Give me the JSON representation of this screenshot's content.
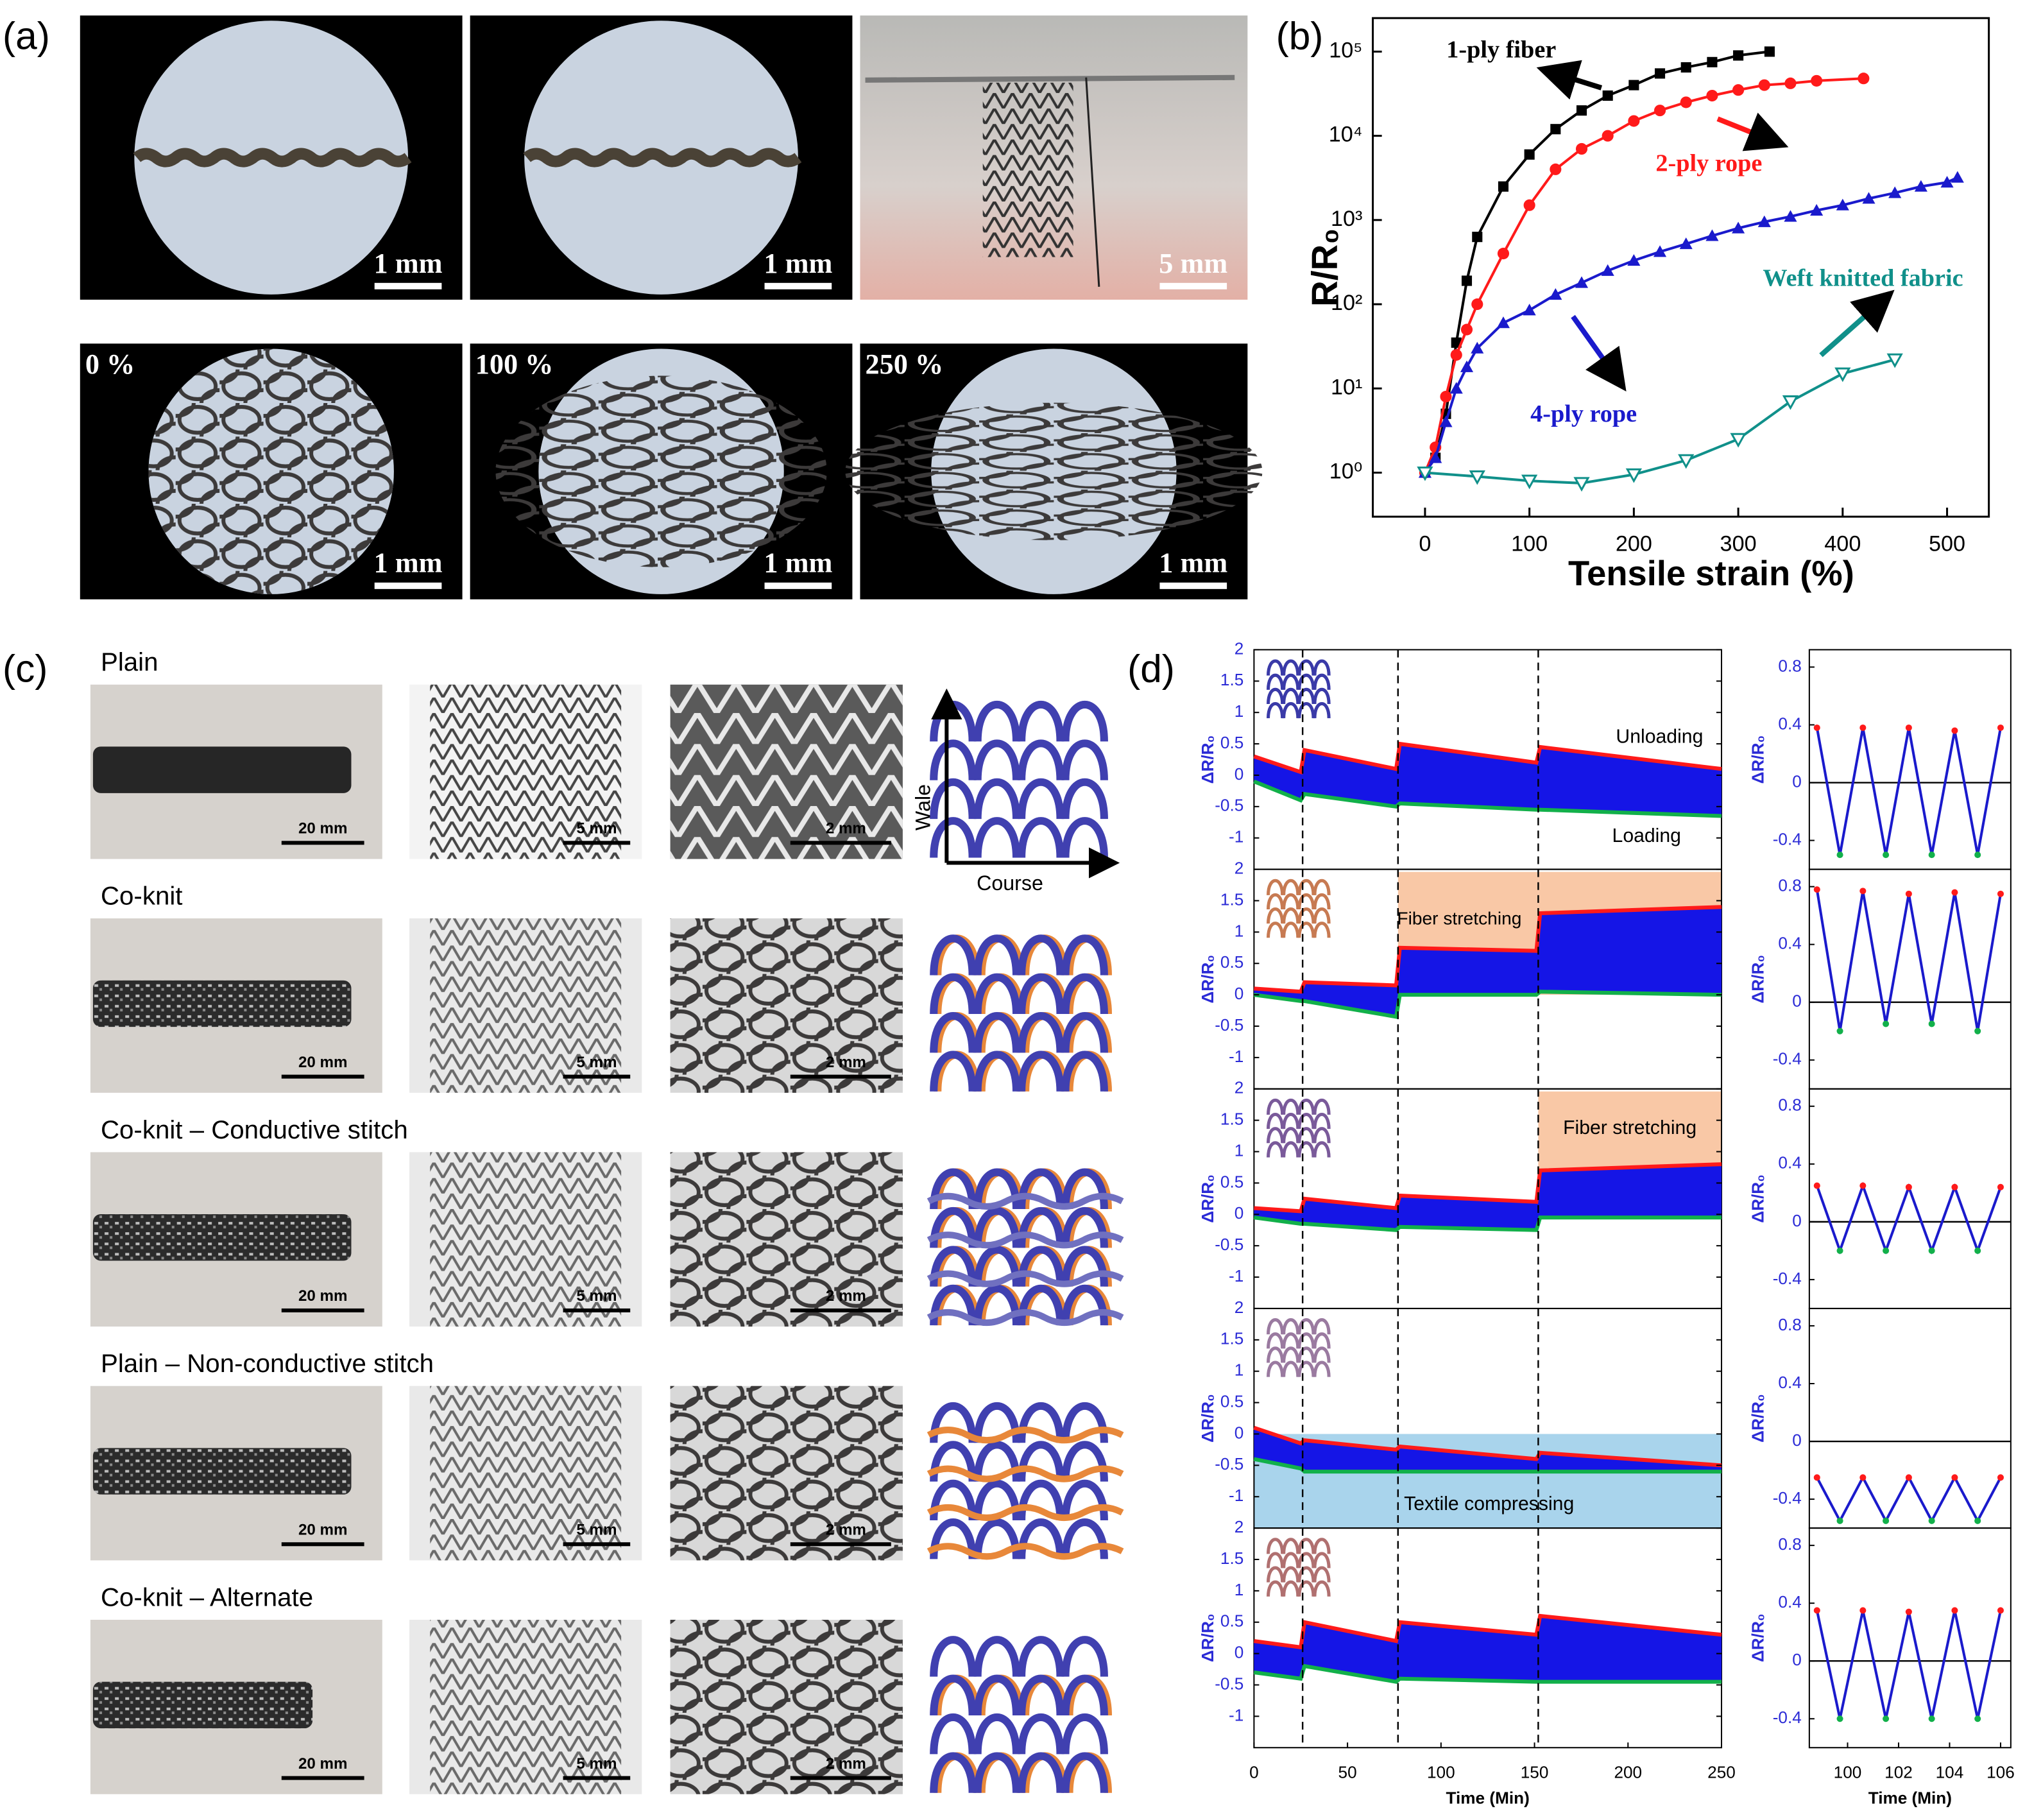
{
  "panel_labels": [
    "(a)",
    "(b)",
    "(c)",
    "(d)"
  ],
  "panel_a": {
    "scale_bars": [
      "1 mm",
      "1 mm",
      "5 mm",
      "1 mm",
      "1 mm",
      "1 mm"
    ],
    "strains": [
      "0 %",
      "100 %",
      "250 %"
    ]
  },
  "panel_c": {
    "rows": [
      {
        "title": "Plain",
        "scale_bars": [
          "20 mm",
          "5 mm",
          "2 mm"
        ]
      },
      {
        "title": "Co-knit",
        "scale_bars": [
          "20 mm",
          "5 mm",
          "2 mm"
        ]
      },
      {
        "title": "Co-knit – Conductive stitch",
        "scale_bars": [
          "20 mm",
          "5 mm",
          "2 mm"
        ]
      },
      {
        "title": "Plain – Non-conductive stitch",
        "scale_bars": [
          "20 mm",
          "5 mm",
          "2 mm"
        ]
      },
      {
        "title": "Co-knit – Alternate",
        "scale_bars": [
          "20 mm",
          "5 mm",
          "2 mm"
        ]
      }
    ],
    "axis_labels": [
      "Wale",
      "Course"
    ]
  },
  "chart_data": [
    {
      "type": "line",
      "xlabel": "Tensile strain (%)",
      "ylabel": "R/R₀",
      "log_y": true,
      "xlim": [
        -50,
        540
      ],
      "xticks": [
        0,
        100,
        200,
        300,
        400,
        500
      ],
      "ylim": [
        0.3,
        250000
      ],
      "yticks": [
        {
          "value": 1,
          "label": "10⁰"
        },
        {
          "value": 10,
          "label": "10¹"
        },
        {
          "value": 100,
          "label": "10²"
        },
        {
          "value": 1000,
          "label": "10³"
        },
        {
          "value": 10000,
          "label": "10⁴"
        },
        {
          "value": 100000,
          "label": "10⁵"
        }
      ],
      "series": [
        {
          "name": "1-ply fiber",
          "color": "#000000",
          "marker": "square",
          "x": [
            0,
            10,
            20,
            30,
            40,
            50,
            75,
            100,
            125,
            150,
            175,
            200,
            225,
            250,
            275,
            300,
            330
          ],
          "values": [
            1,
            1.5,
            5,
            35,
            190,
            630,
            2500,
            6000,
            12000,
            20000,
            30000,
            40000,
            55000,
            65000,
            75000,
            90000,
            100000
          ]
        },
        {
          "name": "2-ply rope",
          "color": "#ff1a1a",
          "marker": "circle",
          "x": [
            0,
            10,
            20,
            30,
            40,
            50,
            75,
            100,
            125,
            150,
            175,
            200,
            225,
            250,
            275,
            300,
            325,
            350,
            375,
            420
          ],
          "values": [
            1,
            2,
            8,
            25,
            50,
            100,
            400,
            1500,
            4000,
            7000,
            10000,
            15000,
            20000,
            25000,
            30000,
            35000,
            40000,
            42000,
            45000,
            48000
          ]
        },
        {
          "name": "4-ply rope",
          "color": "#1a1acc",
          "marker": "triangle",
          "x": [
            0,
            10,
            20,
            30,
            40,
            50,
            75,
            100,
            125,
            150,
            175,
            200,
            225,
            250,
            275,
            300,
            325,
            350,
            375,
            400,
            425,
            450,
            475,
            500,
            510
          ],
          "values": [
            1,
            1.5,
            4,
            10,
            18,
            30,
            60,
            85,
            130,
            180,
            250,
            330,
            420,
            520,
            650,
            800,
            950,
            1100,
            1300,
            1500,
            1800,
            2100,
            2500,
            2800,
            3200
          ]
        },
        {
          "name": "Weft knitted fabric",
          "color": "#10908a",
          "marker": "triangle-down",
          "x": [
            0,
            50,
            100,
            150,
            200,
            250,
            300,
            350,
            400,
            450
          ],
          "values": [
            1,
            0.9,
            0.8,
            0.75,
            0.95,
            1.4,
            2.5,
            7,
            15,
            22
          ]
        }
      ]
    },
    {
      "type": "band",
      "xlabel": "Time (Min)",
      "ylabel": "ΔR/R₀",
      "xlim": [
        0,
        250
      ],
      "xticks": [
        0,
        50,
        100,
        150,
        200,
        250
      ],
      "ylim": [
        -1.5,
        2
      ],
      "yticks": [
        -1,
        -0.5,
        0,
        0.5,
        1,
        1.5,
        2
      ],
      "dividers": [
        26,
        77,
        152
      ],
      "colors": {
        "upper": "#ff1a1a",
        "lower": "#12b04a",
        "band": "#1515e6"
      },
      "x": [
        0,
        25,
        27,
        76,
        78,
        151,
        153,
        250
      ],
      "rows": [
        {
          "upper": [
            0.3,
            0.05,
            0.4,
            0.1,
            0.5,
            0.2,
            0.45,
            0.1
          ],
          "lower": [
            -0.1,
            -0.4,
            -0.3,
            -0.5,
            -0.45,
            -0.55,
            -0.55,
            -0.65
          ]
        },
        {
          "upper": [
            0.1,
            0.05,
            0.2,
            0.15,
            0.75,
            0.7,
            1.3,
            1.4
          ],
          "lower": [
            0,
            -0.1,
            -0.1,
            -0.35,
            0,
            0,
            0.05,
            0
          ]
        },
        {
          "upper": [
            0.1,
            0.05,
            0.25,
            0.1,
            0.3,
            0.2,
            0.7,
            0.8
          ],
          "lower": [
            -0.05,
            -0.15,
            -0.15,
            -0.25,
            -0.2,
            -0.25,
            -0.05,
            -0.05
          ]
        },
        {
          "upper": [
            0.1,
            -0.15,
            -0.1,
            -0.25,
            -0.2,
            -0.4,
            -0.3,
            -0.5
          ],
          "lower": [
            -0.4,
            -0.55,
            -0.6,
            -0.6,
            -0.6,
            -0.6,
            -0.6,
            -0.6
          ]
        },
        {
          "upper": [
            0.2,
            0.1,
            0.5,
            0.2,
            0.5,
            0.3,
            0.6,
            0.3
          ],
          "lower": [
            -0.3,
            -0.4,
            -0.2,
            -0.45,
            -0.4,
            -0.45,
            -0.45,
            -0.45
          ]
        }
      ],
      "annotations": [
        "Unloading",
        "Loading",
        "Fiber stretching",
        "Fiber stretching",
        "Textile compressing"
      ]
    },
    {
      "type": "line",
      "xlabel": "Time (Min)",
      "ylabel": "ΔR/R₀",
      "xlim": [
        98.5,
        106.4
      ],
      "xticks": [
        100,
        102,
        104,
        106
      ],
      "ylim": [
        -0.6,
        0.92
      ],
      "yticks": [
        -0.4,
        0,
        0.4,
        0.8
      ],
      "color": "#1a1acc",
      "x": [
        98.8,
        99.7,
        100.6,
        101.5,
        102.4,
        103.3,
        104.2,
        105.1,
        106.0
      ],
      "rows": [
        [
          0.38,
          -0.5,
          0.38,
          -0.5,
          0.38,
          -0.5,
          0.36,
          -0.5,
          0.38
        ],
        [
          0.78,
          -0.2,
          0.77,
          -0.15,
          0.75,
          -0.15,
          0.76,
          -0.2,
          0.75
        ],
        [
          0.25,
          -0.2,
          0.25,
          -0.2,
          0.24,
          -0.2,
          0.24,
          -0.2,
          0.24
        ],
        [
          -0.25,
          -0.55,
          -0.25,
          -0.55,
          -0.25,
          -0.55,
          -0.25,
          -0.55,
          -0.25
        ],
        [
          0.35,
          -0.4,
          0.35,
          -0.4,
          0.34,
          -0.4,
          0.35,
          -0.4,
          0.35
        ]
      ]
    }
  ]
}
